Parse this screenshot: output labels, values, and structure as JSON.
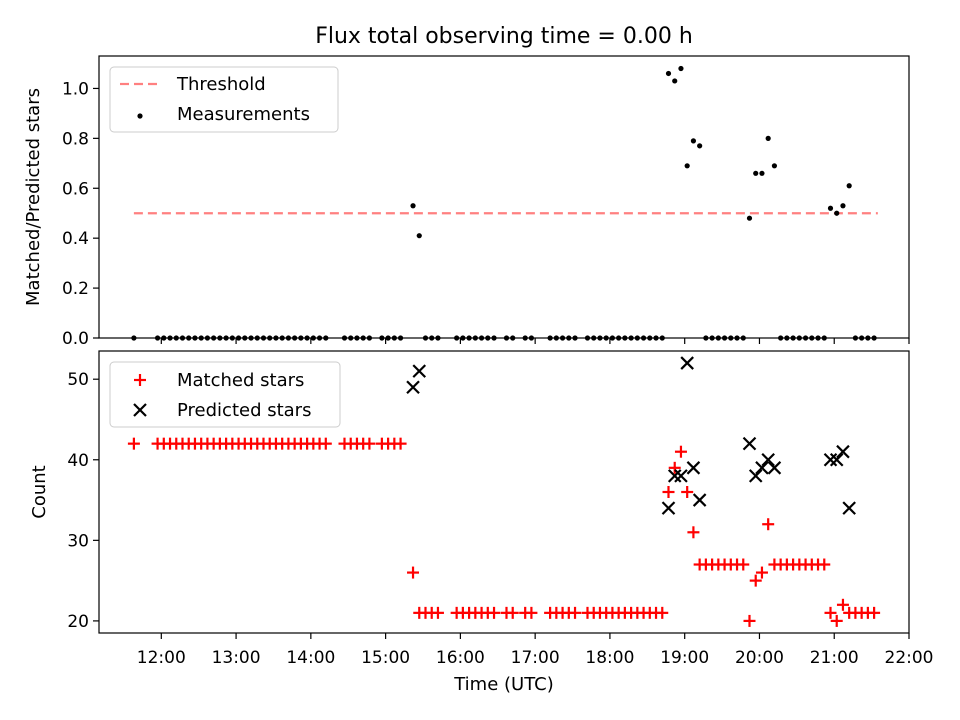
{
  "chart_data": [
    {
      "type": "scatter",
      "title": "Flux total observing time = 0.00 h",
      "ylabel": "Matched/Predicted stars",
      "xlabel": "",
      "ylim": [
        0,
        1.13
      ],
      "yticks": [
        0.0,
        0.2,
        0.4,
        0.6,
        0.8,
        1.0
      ],
      "ytick_labels": [
        "0.0",
        "0.2",
        "0.4",
        "0.6",
        "0.8",
        "1.0"
      ],
      "legend_position": "top-left",
      "legend": [
        "Threshold",
        "Measurements"
      ],
      "threshold": {
        "name": "Threshold",
        "value": 0.5,
        "x_range": [
          "11:38",
          "21:35"
        ],
        "color": "#ff8080"
      },
      "series": [
        {
          "name": "Measurements",
          "color": "#000000",
          "points": [
            [
              "11:38",
              0
            ],
            [
              "11:57",
              0
            ],
            [
              "12:02",
              0
            ],
            [
              "12:07",
              0
            ],
            [
              "12:12",
              0
            ],
            [
              "12:17",
              0
            ],
            [
              "12:22",
              0
            ],
            [
              "12:27",
              0
            ],
            [
              "12:32",
              0
            ],
            [
              "12:37",
              0
            ],
            [
              "12:42",
              0
            ],
            [
              "12:47",
              0
            ],
            [
              "12:52",
              0
            ],
            [
              "12:57",
              0
            ],
            [
              "13:02",
              0
            ],
            [
              "13:07",
              0
            ],
            [
              "13:12",
              0
            ],
            [
              "13:17",
              0
            ],
            [
              "13:22",
              0
            ],
            [
              "13:27",
              0
            ],
            [
              "13:32",
              0
            ],
            [
              "13:37",
              0
            ],
            [
              "13:42",
              0
            ],
            [
              "13:47",
              0
            ],
            [
              "13:52",
              0
            ],
            [
              "13:57",
              0
            ],
            [
              "14:02",
              0
            ],
            [
              "14:07",
              0
            ],
            [
              "14:12",
              0
            ],
            [
              "14:27",
              0
            ],
            [
              "14:32",
              0
            ],
            [
              "14:37",
              0
            ],
            [
              "14:42",
              0
            ],
            [
              "14:47",
              0
            ],
            [
              "14:57",
              0
            ],
            [
              "15:02",
              0
            ],
            [
              "15:07",
              0
            ],
            [
              "15:12",
              0
            ],
            [
              "15:22",
              0.53
            ],
            [
              "15:27",
              0.41
            ],
            [
              "15:32",
              0
            ],
            [
              "15:37",
              0
            ],
            [
              "15:42",
              0
            ],
            [
              "15:57",
              0
            ],
            [
              "16:02",
              0
            ],
            [
              "16:07",
              0
            ],
            [
              "16:12",
              0
            ],
            [
              "16:17",
              0
            ],
            [
              "16:22",
              0
            ],
            [
              "16:27",
              0
            ],
            [
              "16:37",
              0
            ],
            [
              "16:42",
              0
            ],
            [
              "16:52",
              0
            ],
            [
              "16:57",
              0
            ],
            [
              "17:12",
              0
            ],
            [
              "17:17",
              0
            ],
            [
              "17:22",
              0
            ],
            [
              "17:27",
              0
            ],
            [
              "17:32",
              0
            ],
            [
              "17:42",
              0
            ],
            [
              "17:47",
              0
            ],
            [
              "17:52",
              0
            ],
            [
              "17:57",
              0
            ],
            [
              "18:02",
              0
            ],
            [
              "18:07",
              0
            ],
            [
              "18:12",
              0
            ],
            [
              "18:17",
              0
            ],
            [
              "18:22",
              0
            ],
            [
              "18:27",
              0
            ],
            [
              "18:32",
              0
            ],
            [
              "18:37",
              0
            ],
            [
              "18:42",
              0
            ],
            [
              "18:47",
              1.06
            ],
            [
              "18:52",
              1.03
            ],
            [
              "18:57",
              1.08
            ],
            [
              "19:02",
              0.69
            ],
            [
              "19:07",
              0.79
            ],
            [
              "19:12",
              0.77
            ],
            [
              "19:17",
              0
            ],
            [
              "19:22",
              0
            ],
            [
              "19:27",
              0
            ],
            [
              "19:32",
              0
            ],
            [
              "19:37",
              0
            ],
            [
              "19:42",
              0
            ],
            [
              "19:47",
              0
            ],
            [
              "19:52",
              0.48
            ],
            [
              "19:57",
              0.66
            ],
            [
              "20:02",
              0.66
            ],
            [
              "20:07",
              0.8
            ],
            [
              "20:12",
              0.69
            ],
            [
              "20:17",
              0
            ],
            [
              "20:22",
              0
            ],
            [
              "20:27",
              0
            ],
            [
              "20:32",
              0
            ],
            [
              "20:37",
              0
            ],
            [
              "20:42",
              0
            ],
            [
              "20:47",
              0
            ],
            [
              "20:52",
              0
            ],
            [
              "20:57",
              0.52
            ],
            [
              "21:02",
              0.5
            ],
            [
              "21:07",
              0.53
            ],
            [
              "21:12",
              0.61
            ],
            [
              "21:17",
              0
            ],
            [
              "21:22",
              0
            ],
            [
              "21:27",
              0
            ],
            [
              "21:32",
              0
            ]
          ]
        }
      ]
    },
    {
      "type": "scatter",
      "title": "",
      "ylabel": "Count",
      "xlabel": "Time (UTC)",
      "ylim": [
        18.5,
        53.5
      ],
      "yticks": [
        20,
        30,
        40,
        50
      ],
      "ytick_labels": [
        "20",
        "30",
        "40",
        "50"
      ],
      "xticks": [
        "12:00",
        "13:00",
        "14:00",
        "15:00",
        "16:00",
        "17:00",
        "18:00",
        "19:00",
        "20:00",
        "21:00",
        "22:00"
      ],
      "xlim": [
        "11:10",
        "22:00"
      ],
      "legend_position": "top-left",
      "legend": [
        "Matched stars",
        "Predicted stars"
      ],
      "series": [
        {
          "name": "Matched stars",
          "marker": "plus",
          "color": "#ff0000",
          "points": [
            [
              "11:38",
              42
            ],
            [
              "11:57",
              42
            ],
            [
              "12:02",
              42
            ],
            [
              "12:07",
              42
            ],
            [
              "12:12",
              42
            ],
            [
              "12:17",
              42
            ],
            [
              "12:22",
              42
            ],
            [
              "12:27",
              42
            ],
            [
              "12:32",
              42
            ],
            [
              "12:37",
              42
            ],
            [
              "12:42",
              42
            ],
            [
              "12:47",
              42
            ],
            [
              "12:52",
              42
            ],
            [
              "12:57",
              42
            ],
            [
              "13:02",
              42
            ],
            [
              "13:07",
              42
            ],
            [
              "13:12",
              42
            ],
            [
              "13:17",
              42
            ],
            [
              "13:22",
              42
            ],
            [
              "13:27",
              42
            ],
            [
              "13:32",
              42
            ],
            [
              "13:37",
              42
            ],
            [
              "13:42",
              42
            ],
            [
              "13:47",
              42
            ],
            [
              "13:52",
              42
            ],
            [
              "13:57",
              42
            ],
            [
              "14:02",
              42
            ],
            [
              "14:07",
              42
            ],
            [
              "14:12",
              42
            ],
            [
              "14:27",
              42
            ],
            [
              "14:32",
              42
            ],
            [
              "14:37",
              42
            ],
            [
              "14:42",
              42
            ],
            [
              "14:47",
              42
            ],
            [
              "14:57",
              42
            ],
            [
              "15:02",
              42
            ],
            [
              "15:07",
              42
            ],
            [
              "15:12",
              42
            ],
            [
              "15:22",
              26
            ],
            [
              "15:27",
              21
            ],
            [
              "15:32",
              21
            ],
            [
              "15:37",
              21
            ],
            [
              "15:42",
              21
            ],
            [
              "15:57",
              21
            ],
            [
              "16:02",
              21
            ],
            [
              "16:07",
              21
            ],
            [
              "16:12",
              21
            ],
            [
              "16:17",
              21
            ],
            [
              "16:22",
              21
            ],
            [
              "16:27",
              21
            ],
            [
              "16:37",
              21
            ],
            [
              "16:42",
              21
            ],
            [
              "16:52",
              21
            ],
            [
              "16:57",
              21
            ],
            [
              "17:12",
              21
            ],
            [
              "17:17",
              21
            ],
            [
              "17:22",
              21
            ],
            [
              "17:27",
              21
            ],
            [
              "17:32",
              21
            ],
            [
              "17:42",
              21
            ],
            [
              "17:47",
              21
            ],
            [
              "17:52",
              21
            ],
            [
              "17:57",
              21
            ],
            [
              "18:02",
              21
            ],
            [
              "18:07",
              21
            ],
            [
              "18:12",
              21
            ],
            [
              "18:17",
              21
            ],
            [
              "18:22",
              21
            ],
            [
              "18:27",
              21
            ],
            [
              "18:32",
              21
            ],
            [
              "18:37",
              21
            ],
            [
              "18:42",
              21
            ],
            [
              "18:47",
              36
            ],
            [
              "18:52",
              39
            ],
            [
              "18:57",
              41
            ],
            [
              "19:02",
              36
            ],
            [
              "19:07",
              31
            ],
            [
              "19:12",
              27
            ],
            [
              "19:17",
              27
            ],
            [
              "19:22",
              27
            ],
            [
              "19:27",
              27
            ],
            [
              "19:32",
              27
            ],
            [
              "19:37",
              27
            ],
            [
              "19:42",
              27
            ],
            [
              "19:47",
              27
            ],
            [
              "19:52",
              20
            ],
            [
              "19:57",
              25
            ],
            [
              "20:02",
              26
            ],
            [
              "20:07",
              32
            ],
            [
              "20:12",
              27
            ],
            [
              "20:17",
              27
            ],
            [
              "20:22",
              27
            ],
            [
              "20:27",
              27
            ],
            [
              "20:32",
              27
            ],
            [
              "20:37",
              27
            ],
            [
              "20:42",
              27
            ],
            [
              "20:47",
              27
            ],
            [
              "20:52",
              27
            ],
            [
              "20:57",
              21
            ],
            [
              "21:02",
              20
            ],
            [
              "21:07",
              22
            ],
            [
              "21:12",
              21
            ],
            [
              "21:17",
              21
            ],
            [
              "21:22",
              21
            ],
            [
              "21:27",
              21
            ],
            [
              "21:32",
              21
            ]
          ]
        },
        {
          "name": "Predicted stars",
          "marker": "x",
          "color": "#000000",
          "points": [
            [
              "15:22",
              49
            ],
            [
              "15:27",
              51
            ],
            [
              "18:47",
              34
            ],
            [
              "18:52",
              38
            ],
            [
              "18:57",
              38
            ],
            [
              "19:02",
              52
            ],
            [
              "19:07",
              39
            ],
            [
              "19:12",
              35
            ],
            [
              "19:52",
              42
            ],
            [
              "19:57",
              38
            ],
            [
              "20:02",
              39
            ],
            [
              "20:07",
              40
            ],
            [
              "20:12",
              39
            ],
            [
              "20:57",
              40
            ],
            [
              "21:02",
              40
            ],
            [
              "21:07",
              41
            ],
            [
              "21:12",
              34
            ]
          ]
        }
      ]
    }
  ]
}
